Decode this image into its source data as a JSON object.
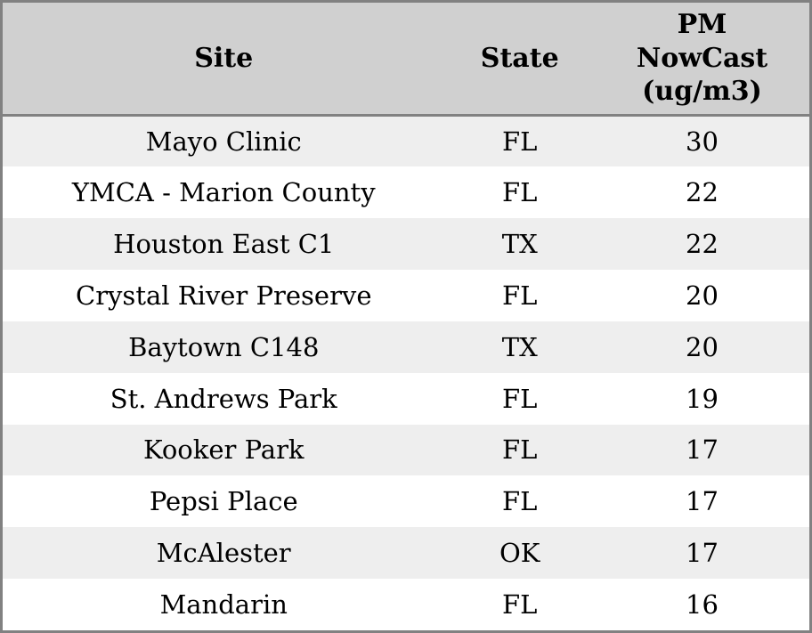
{
  "table": {
    "header": {
      "site": "Site",
      "state": "State",
      "pm": "PM NowCast (ug/m3)"
    },
    "rows": [
      {
        "site": "Mayo Clinic",
        "state": "FL",
        "pm": "30"
      },
      {
        "site": "YMCA - Marion County",
        "state": "FL",
        "pm": "22"
      },
      {
        "site": "Houston East C1",
        "state": "TX",
        "pm": "22"
      },
      {
        "site": "Crystal River Preserve",
        "state": "FL",
        "pm": "20"
      },
      {
        "site": "Baytown C148",
        "state": "TX",
        "pm": "20"
      },
      {
        "site": "St. Andrews Park",
        "state": "FL",
        "pm": "19"
      },
      {
        "site": "Kooker Park",
        "state": "FL",
        "pm": "17"
      },
      {
        "site": "Pepsi Place",
        "state": "FL",
        "pm": "17"
      },
      {
        "site": "McAlester",
        "state": "OK",
        "pm": "17"
      },
      {
        "site": "Mandarin",
        "state": "FL",
        "pm": "16"
      }
    ]
  },
  "colors": {
    "header_bg": "#d0d0d0",
    "row_stripe_bg": "#eeeeee",
    "row_bg": "#ffffff",
    "border": "#818181",
    "text": "#000000"
  },
  "chart_data": {
    "type": "table",
    "title": "",
    "columns": [
      "Site",
      "State",
      "PM NowCast (ug/m3)"
    ],
    "rows": [
      [
        "Mayo Clinic",
        "FL",
        30
      ],
      [
        "YMCA - Marion County",
        "FL",
        22
      ],
      [
        "Houston East C1",
        "TX",
        22
      ],
      [
        "Crystal River Preserve",
        "FL",
        20
      ],
      [
        "Baytown C148",
        "TX",
        20
      ],
      [
        "St. Andrews Park",
        "FL",
        19
      ],
      [
        "Kooker Park",
        "FL",
        17
      ],
      [
        "Pepsi Place",
        "FL",
        17
      ],
      [
        "McAlester",
        "OK",
        17
      ],
      [
        "Mandarin",
        "FL",
        16
      ]
    ],
    "layout_hints": {
      "header_background": "#d0d0d0",
      "striped_rows": true,
      "first_data_row_shaded": true,
      "text_align": "center"
    }
  }
}
